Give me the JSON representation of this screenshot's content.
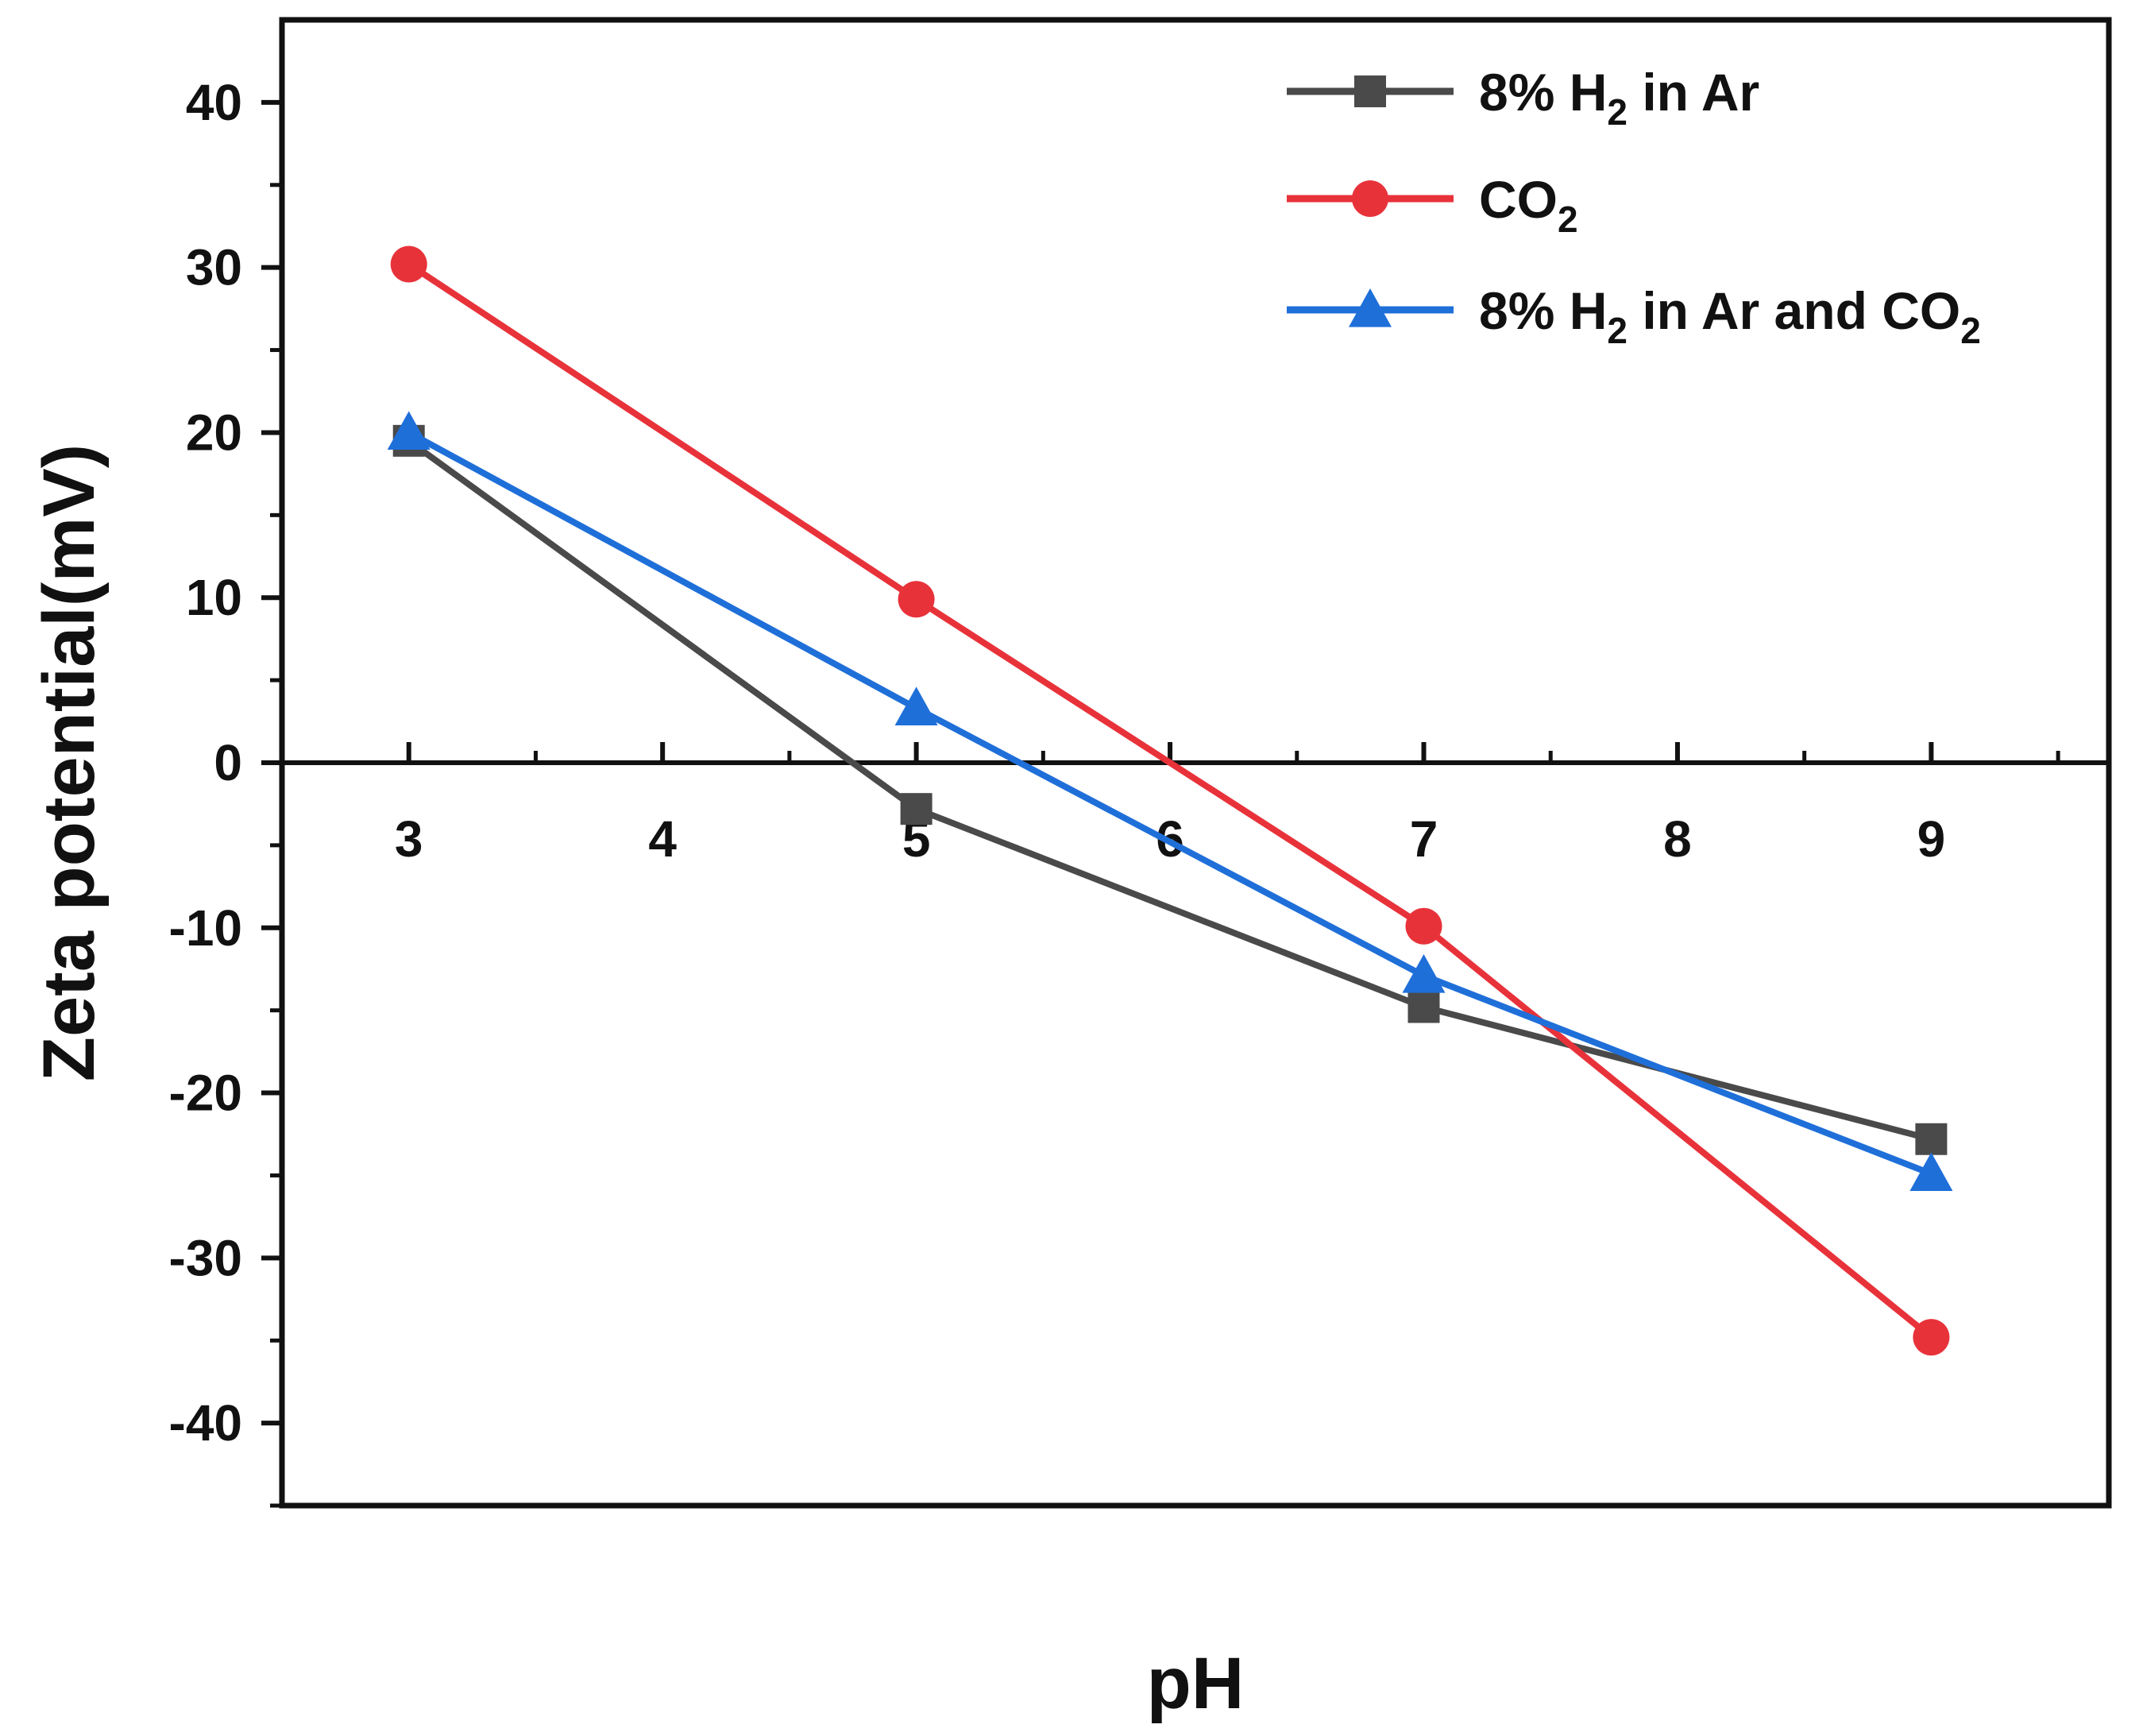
{
  "chart_data": {
    "type": "line",
    "title": "",
    "xlabel": "pH",
    "ylabel": "Zeta potential(mV)",
    "x": [
      3,
      5,
      7,
      9
    ],
    "xlim": [
      2.5,
      9.7
    ],
    "ylim": [
      -45,
      45
    ],
    "xticks": [
      3,
      4,
      5,
      6,
      7,
      8,
      9
    ],
    "yticks": [
      40,
      30,
      20,
      10,
      0,
      -10,
      -20,
      -30,
      -40
    ],
    "grid": false,
    "legend_position": "top-right",
    "series": [
      {
        "name": "8% H2 in Ar",
        "label_parts": [
          "8% H",
          "2",
          " in Ar"
        ],
        "values": [
          19.5,
          -2.8,
          -14.8,
          -22.8
        ],
        "color": "#4a4a4a",
        "marker": "square"
      },
      {
        "name": "CO2",
        "label_parts": [
          "CO",
          "2",
          ""
        ],
        "values": [
          30.2,
          9.9,
          -9.9,
          -34.8
        ],
        "color": "#e8323a",
        "marker": "circle"
      },
      {
        "name": "8% H2 in Ar and CO2",
        "label_parts": [
          "8% H",
          "2",
          " in Ar and CO",
          "2"
        ],
        "values": [
          20.0,
          3.3,
          -12.9,
          -24.9
        ],
        "color": "#1f6fd9",
        "marker": "triangle"
      }
    ]
  }
}
